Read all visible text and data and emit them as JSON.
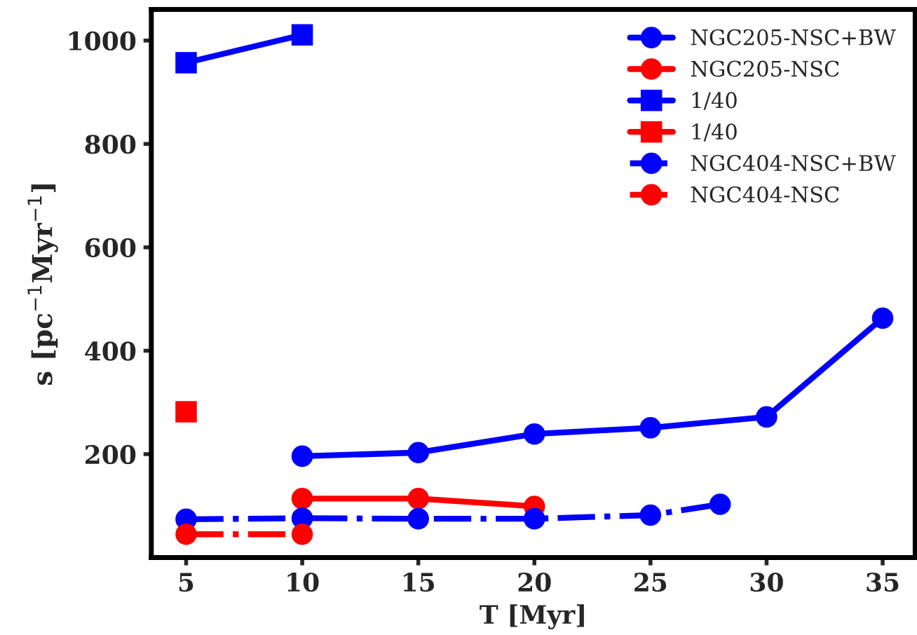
{
  "chart_data": {
    "type": "line",
    "xlabel": "T [Myr]",
    "ylabel": "s [pc$^{−1}$Myr$^{−1}$]",
    "xlim": [
      3.5,
      36.4
    ],
    "ylim": [
      0,
      1060
    ],
    "xticks": [
      5,
      10,
      15,
      20,
      25,
      30,
      35
    ],
    "yticks": [
      200,
      400,
      600,
      800,
      1000
    ],
    "grid": false,
    "legend": "top right",
    "series": [
      {
        "name": "NGC205-NSC+BW",
        "color": "#0000ff",
        "marker": "circle",
        "line_style": "solid",
        "x": [
          10,
          15,
          20,
          25,
          30,
          35
        ],
        "values": [
          196,
          203,
          239,
          251,
          272,
          463
        ]
      },
      {
        "name": "NGC205-NSC",
        "color": "#ff0000",
        "marker": "circle",
        "line_style": "solid",
        "x": [
          10,
          15,
          20
        ],
        "values": [
          114,
          114,
          99
        ]
      },
      {
        "name": "1/40",
        "color": "#0000ff",
        "marker": "square",
        "line_style": "solid",
        "x": [
          5,
          10
        ],
        "values": [
          957,
          1011
        ]
      },
      {
        "name": "1/40",
        "color": "#ff0000",
        "marker": "square",
        "line_style": "solid",
        "x": [
          5
        ],
        "values": [
          282
        ]
      },
      {
        "name": "NGC404-NSC+BW",
        "color": "#0000ff",
        "marker": "circle",
        "line_style": "dashdot",
        "x": [
          5,
          10,
          15,
          20,
          25,
          28
        ],
        "values": [
          74,
          76,
          75,
          75,
          82,
          103
        ]
      },
      {
        "name": "NGC404-NSC",
        "color": "#ff0000",
        "marker": "circle",
        "line_style": "dashdot",
        "x": [
          5,
          10
        ],
        "values": [
          45,
          45
        ]
      }
    ]
  }
}
